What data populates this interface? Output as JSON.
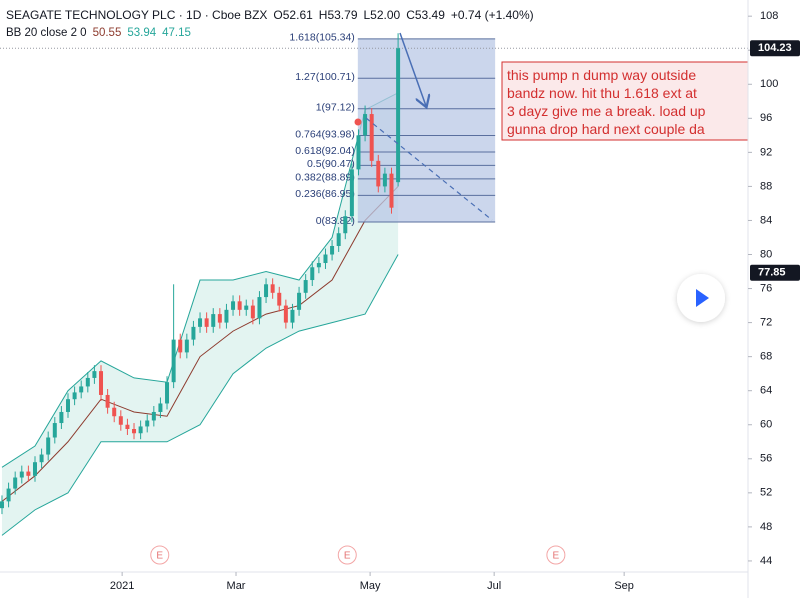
{
  "header": {
    "title": "SEAGATE TECHNOLOGY PLC · 1D · Cboe BZX",
    "ohlc": [
      "O52.61",
      "H53.79",
      "L52.00",
      "C53.49",
      "+0.74 (+1.40%)"
    ],
    "indicator": "BB 20 close 2 0",
    "indicator_values": [
      "50.55",
      "53.94",
      "47.15"
    ]
  },
  "chart_data": {
    "type": "candlestick",
    "x": [
      0,
      1,
      2,
      3,
      4,
      5,
      6,
      7,
      8,
      9,
      10,
      11,
      12,
      13,
      14,
      15,
      16,
      17,
      18,
      19,
      20,
      21,
      22,
      23,
      24,
      25,
      26,
      27,
      28,
      29,
      30,
      31,
      32,
      33,
      34,
      35,
      36,
      37,
      38,
      39,
      40,
      41,
      42,
      43,
      44,
      45,
      46,
      47,
      48,
      49,
      50,
      51,
      52,
      53,
      54,
      55,
      56,
      57,
      58,
      59,
      60
    ],
    "open": [
      50.2,
      51.0,
      52.5,
      53.8,
      54.5,
      54.0,
      55.6,
      56.5,
      58.5,
      60.2,
      61.5,
      63.0,
      63.8,
      64.5,
      65.5,
      66.3,
      63.5,
      62.0,
      61.0,
      60.0,
      59.5,
      59.0,
      59.8,
      60.5,
      61.5,
      62.5,
      65.0,
      70.0,
      68.5,
      70.0,
      71.5,
      72.5,
      71.5,
      73.0,
      72.0,
      73.5,
      74.5,
      73.5,
      74.0,
      72.5,
      75.0,
      76.5,
      75.5,
      74.0,
      72.0,
      73.5,
      75.5,
      77.0,
      78.5,
      79.0,
      80.0,
      81.0,
      82.5,
      84.5,
      90.0,
      94.0,
      96.5,
      91.0,
      88.0,
      89.5,
      88.5
    ],
    "high": [
      51.7,
      53.2,
      54.5,
      55.2,
      55.2,
      56.3,
      57.2,
      59.2,
      60.9,
      62.2,
      63.7,
      64.5,
      65.2,
      66.2,
      67.0,
      67.0,
      64.2,
      62.7,
      61.7,
      60.7,
      60.2,
      60.5,
      61.2,
      62.2,
      63.2,
      65.7,
      76.5,
      70.7,
      70.7,
      72.2,
      73.2,
      73.2,
      73.7,
      73.7,
      74.2,
      75.2,
      75.2,
      74.7,
      74.7,
      75.7,
      77.2,
      77.2,
      76.2,
      74.7,
      74.2,
      76.2,
      77.7,
      79.2,
      79.7,
      80.7,
      81.7,
      83.2,
      85.2,
      90.7,
      94.7,
      97.5,
      97.2,
      91.7,
      90.2,
      90.2,
      106.0
    ],
    "low": [
      49.5,
      50.3,
      51.8,
      53.1,
      53.3,
      53.3,
      54.9,
      55.8,
      57.8,
      59.5,
      60.8,
      62.3,
      63.1,
      63.8,
      64.8,
      62.8,
      61.3,
      60.3,
      59.3,
      58.8,
      58.3,
      58.3,
      59.1,
      59.8,
      60.8,
      61.8,
      64.3,
      67.8,
      67.8,
      69.3,
      70.8,
      70.8,
      70.8,
      71.3,
      71.3,
      72.8,
      72.8,
      72.8,
      71.8,
      71.8,
      74.3,
      74.8,
      73.3,
      71.3,
      71.3,
      72.8,
      74.8,
      76.3,
      77.8,
      78.3,
      79.3,
      80.3,
      81.8,
      83.8,
      89.3,
      93.3,
      90.3,
      87.3,
      87.3,
      84.8,
      88.0
    ],
    "close": [
      51.0,
      52.5,
      53.8,
      54.5,
      54.0,
      55.6,
      56.5,
      58.5,
      60.2,
      61.5,
      63.0,
      63.8,
      64.5,
      65.5,
      66.3,
      63.5,
      62.0,
      61.0,
      60.0,
      59.5,
      59.0,
      59.8,
      60.5,
      61.5,
      62.5,
      65.0,
      70.0,
      68.5,
      70.0,
      71.5,
      72.5,
      71.5,
      73.0,
      72.0,
      73.5,
      74.5,
      73.5,
      74.0,
      72.5,
      75.0,
      76.5,
      75.5,
      74.0,
      72.0,
      73.5,
      75.5,
      77.0,
      78.5,
      79.0,
      80.0,
      81.0,
      82.5,
      84.5,
      90.0,
      94.0,
      96.5,
      91.0,
      88.0,
      89.5,
      85.5,
      104.23
    ],
    "up_color": "#26a69a",
    "down_color": "#ef5350",
    "bands": {
      "x": [
        0,
        5,
        10,
        15,
        20,
        25,
        30,
        35,
        40,
        45,
        50,
        55,
        60
      ],
      "upper": [
        55,
        57.5,
        64,
        67.5,
        65.5,
        65,
        77,
        77,
        78,
        77,
        82,
        97,
        99
      ],
      "basis": [
        51,
        54,
        58,
        63,
        61.5,
        61,
        68,
        71,
        73,
        74,
        77,
        84,
        88
      ],
      "lower": [
        47,
        50,
        52,
        58,
        58,
        58,
        60,
        66,
        69,
        71,
        72,
        73,
        80
      ],
      "band_color": "#26a69a",
      "basis_color": "#8d3b2e",
      "fill": "#e3f4f1"
    },
    "xlim": [
      -0.3,
      113
    ],
    "ylim": [
      42.7,
      109.9
    ],
    "xticks": [
      {
        "value": 18.2,
        "label": "2021"
      },
      {
        "value": 35.45,
        "label": "Mar"
      },
      {
        "value": 55.76,
        "label": "May"
      },
      {
        "value": 74.55,
        "label": "Jul"
      },
      {
        "value": 94.24,
        "label": "Sep"
      }
    ],
    "yticks": [
      44,
      48,
      52,
      56,
      60,
      64,
      68,
      72,
      76,
      80,
      84,
      88,
      92,
      96,
      100,
      104,
      108
    ],
    "price_tags": [
      104.23,
      77.85
    ],
    "fib": {
      "x": [
        53.9,
        74.7
      ],
      "color": "#5a6f9e",
      "fill": "#b9c8e6",
      "levels": [
        {
          "value": 105.34,
          "label": "1.618(105.34)"
        },
        {
          "value": 100.71,
          "label": "1.27(100.71)"
        },
        {
          "value": 97.12,
          "label": "1(97.12)"
        },
        {
          "value": 93.98,
          "label": "0.764(93.98)"
        },
        {
          "value": 92.04,
          "label": "0.618(92.04)"
        },
        {
          "value": 90.47,
          "label": "0.5(90.47)"
        },
        {
          "value": 88.89,
          "label": "0.382(88.89)"
        },
        {
          "value": 86.95,
          "label": "0.236(86.95)"
        },
        {
          "value": 83.82,
          "label": "0(83.82)"
        }
      ]
    },
    "events": [
      {
        "x": 23.9,
        "label": "E"
      },
      {
        "x": 52.3,
        "label": "E"
      },
      {
        "x": 83.9,
        "label": "E"
      }
    ],
    "annotation": [
      "this pump n dump way outside",
      "bandz now. hit thu 1.618 ext at",
      "3 dayz give me a break. load up",
      "gunna drop hard next couple da"
    ]
  }
}
